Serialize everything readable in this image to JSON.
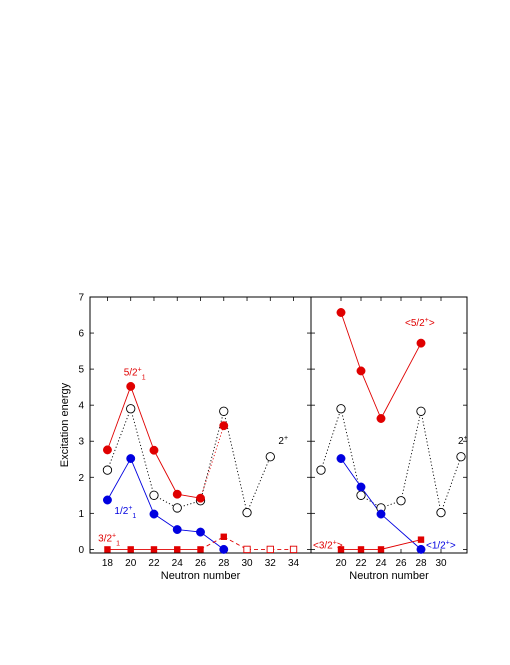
{
  "chart_data": [
    {
      "type": "line",
      "panel": "left",
      "xlabel": "Neutron number",
      "ylabel": "Excitation energy",
      "xlim": [
        16.5,
        35.5
      ],
      "ylim": [
        -0.1,
        7
      ],
      "xticks": [
        18,
        20,
        22,
        24,
        26,
        28,
        30,
        32,
        34
      ],
      "yticks": [
        0,
        1,
        2,
        3,
        4,
        5,
        6,
        7
      ],
      "series": [
        {
          "name": "2+",
          "color": "#000000",
          "line": "dotted",
          "marker": "open-circle",
          "points": [
            [
              18,
              2.2
            ],
            [
              20,
              3.9
            ],
            [
              22,
              1.5
            ],
            [
              24,
              1.15
            ],
            [
              26,
              1.35
            ],
            [
              28,
              3.83
            ],
            [
              30,
              1.02
            ],
            [
              32,
              2.57
            ]
          ]
        },
        {
          "name": "5/2+1",
          "color": "#e00000",
          "line": "solid-then-dotted",
          "marker": "filled-circle",
          "points": [
            [
              18,
              2.76
            ],
            [
              20,
              4.52
            ],
            [
              22,
              2.75
            ],
            [
              24,
              1.53
            ],
            [
              26,
              1.42
            ],
            [
              28,
              3.43
            ]
          ]
        },
        {
          "name": "1/2+1",
          "color": "#0000e0",
          "line": "solid",
          "marker": "filled-circle",
          "points": [
            [
              18,
              1.37
            ],
            [
              20,
              2.52
            ],
            [
              22,
              0.98
            ],
            [
              24,
              0.55
            ],
            [
              26,
              0.48
            ],
            [
              28,
              0.0
            ]
          ]
        },
        {
          "name": "3/2+1",
          "color": "#e00000",
          "line": "solid-then-dashed",
          "marker": "filled-square",
          "points": [
            [
              18,
              0.0
            ],
            [
              20,
              0.0
            ],
            [
              22,
              0.0
            ],
            [
              24,
              0.0
            ],
            [
              26,
              0.0
            ],
            [
              28,
              0.35
            ]
          ],
          "open_points": [
            [
              30,
              0.0
            ],
            [
              32,
              0.0
            ],
            [
              34,
              0.0
            ]
          ]
        }
      ],
      "annotations": [
        {
          "text": "5/2",
          "sup": "+",
          "sub": "1",
          "color": "#e00000",
          "x": 19.4,
          "y": 4.82
        },
        {
          "text": "1/2",
          "sup": "+",
          "sub": "1",
          "color": "#0000e0",
          "x": 18.6,
          "y": 0.98
        },
        {
          "text": "3/2",
          "sup": "+",
          "sub": "1",
          "color": "#e00000",
          "x": 17.2,
          "y": 0.22
        },
        {
          "text": "2",
          "sup": "+",
          "sub": "",
          "color": "#000000",
          "x": 32.7,
          "y": 2.92
        }
      ]
    },
    {
      "type": "line",
      "panel": "right",
      "xlabel": "Neutron number",
      "ylabel": "",
      "xlim": [
        17,
        32.6
      ],
      "ylim": [
        -0.1,
        7
      ],
      "xticks": [
        20,
        22,
        24,
        26,
        28,
        30
      ],
      "yticks": [
        0,
        1,
        2,
        3,
        4,
        5,
        6,
        7
      ],
      "series": [
        {
          "name": "2+",
          "color": "#000000",
          "line": "dotted",
          "marker": "open-circle",
          "points": [
            [
              18,
              2.2
            ],
            [
              20,
              3.9
            ],
            [
              22,
              1.5
            ],
            [
              24,
              1.15
            ],
            [
              26,
              1.35
            ],
            [
              28,
              3.83
            ],
            [
              30,
              1.02
            ],
            [
              32,
              2.57
            ]
          ]
        },
        {
          "name": "<5/2+>",
          "color": "#e00000",
          "line": "solid",
          "marker": "filled-circle",
          "points": [
            [
              20,
              6.57
            ],
            [
              22,
              4.95
            ],
            [
              24,
              3.63
            ],
            [
              28,
              5.72
            ]
          ]
        },
        {
          "name": "<1/2+>",
          "color": "#0000e0",
          "line": "solid",
          "marker": "filled-circle",
          "points": [
            [
              20,
              2.52
            ],
            [
              22,
              1.73
            ],
            [
              24,
              0.98
            ],
            [
              28,
              0.0
            ]
          ]
        },
        {
          "name": "<3/2+>",
          "color": "#e00000",
          "line": "solid",
          "marker": "filled-square",
          "points": [
            [
              20,
              0.0
            ],
            [
              22,
              0.0
            ],
            [
              24,
              0.0
            ],
            [
              28,
              0.27
            ]
          ]
        }
      ],
      "annotations": [
        {
          "text": "<5/2",
          "sup": "+",
          "sub": "",
          "tail": ">",
          "color": "#e00000",
          "x": 26.4,
          "y": 6.2
        },
        {
          "text": "<1/2",
          "sup": "+",
          "sub": "",
          "tail": ">",
          "color": "#0000e0",
          "x": 28.5,
          "y": 0.02
        },
        {
          "text": "<3/2",
          "sup": "+",
          "sub": "",
          "tail": ">",
          "color": "#e00000",
          "x": 17.2,
          "y": 0.02
        },
        {
          "text": "2",
          "sup": "+",
          "sub": "",
          "color": "#000000",
          "x": 31.7,
          "y": 2.92
        }
      ]
    }
  ]
}
